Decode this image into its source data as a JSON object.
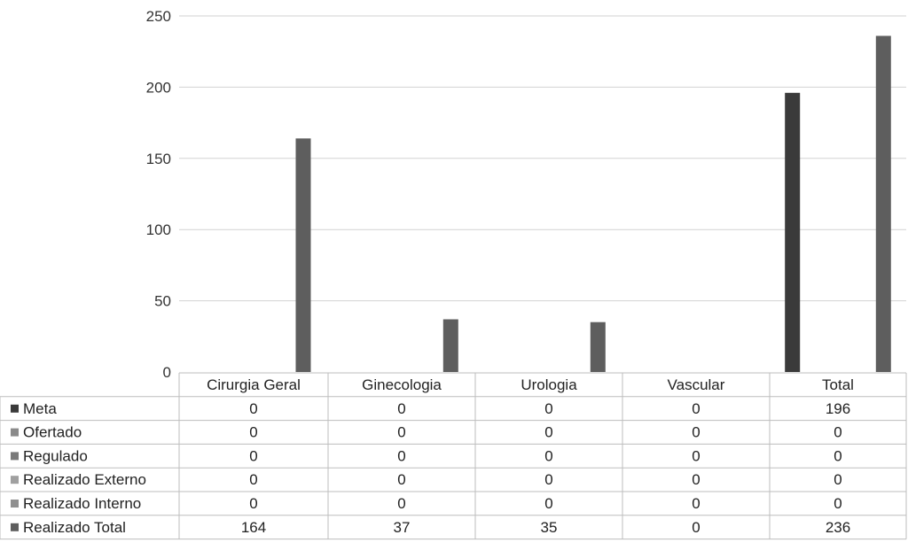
{
  "chart_data": {
    "type": "bar",
    "categories": [
      "Cirurgia Geral",
      "Ginecologia",
      "Urologia",
      "Vascular",
      "Total"
    ],
    "series": [
      {
        "name": "Meta",
        "values": [
          0,
          0,
          0,
          0,
          196
        ],
        "color": "#3a3a3a"
      },
      {
        "name": "Ofertado",
        "values": [
          0,
          0,
          0,
          0,
          0
        ],
        "color": "#8a8a8a"
      },
      {
        "name": "Regulado",
        "values": [
          0,
          0,
          0,
          0,
          0
        ],
        "color": "#7a7a7a"
      },
      {
        "name": "Realizado Externo",
        "values": [
          0,
          0,
          0,
          0,
          0
        ],
        "color": "#a0a0a0"
      },
      {
        "name": "Realizado Interno",
        "values": [
          0,
          0,
          0,
          0,
          0
        ],
        "color": "#909090"
      },
      {
        "name": "Realizado Total",
        "values": [
          164,
          37,
          35,
          0,
          236
        ],
        "color": "#5e5e5e"
      }
    ],
    "y_ticks": [
      0,
      50,
      100,
      150,
      200,
      250
    ],
    "ylim": [
      0,
      250
    ],
    "grid": true,
    "legend": "data-table"
  }
}
